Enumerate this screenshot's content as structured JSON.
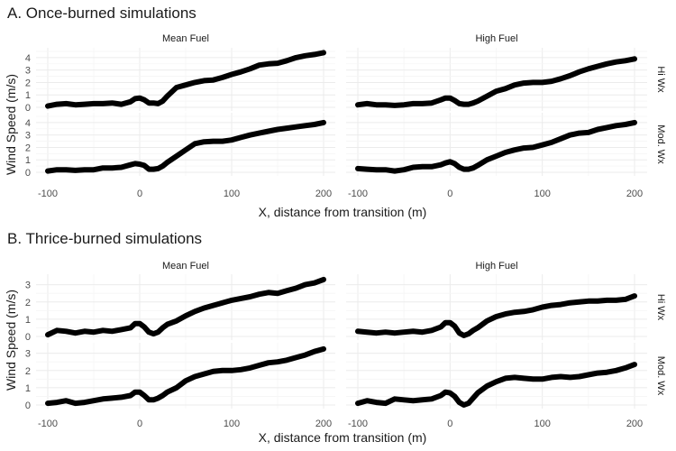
{
  "chart_data": [
    {
      "type": "scatter",
      "title": "A. Once-burned simulations",
      "xlabel": "X, distance from transition (m)",
      "ylabel": "Wind Speed (m/s)",
      "xlim": [
        -100,
        200
      ],
      "ylim": [
        0,
        4.5
      ],
      "xticks": [
        "-100",
        "0",
        "100",
        "200"
      ],
      "yticks": [
        "0",
        "1",
        "2",
        "3",
        "4"
      ],
      "columns": [
        "Mean Fuel",
        "High Fuel"
      ],
      "rows": [
        "Hi Wx",
        "Mod. Wx"
      ],
      "panels": [
        {
          "column": "Mean Fuel",
          "row": "Hi Wx",
          "x": [
            -100,
            -90,
            -80,
            -70,
            -60,
            -50,
            -40,
            -30,
            -20,
            -10,
            -5,
            0,
            5,
            10,
            15,
            20,
            25,
            30,
            40,
            50,
            60,
            70,
            80,
            90,
            100,
            110,
            120,
            130,
            140,
            150,
            160,
            170,
            180,
            190,
            200
          ],
          "y": [
            0.1,
            0.25,
            0.3,
            0.2,
            0.25,
            0.3,
            0.3,
            0.35,
            0.25,
            0.45,
            0.7,
            0.75,
            0.6,
            0.35,
            0.35,
            0.3,
            0.5,
            0.9,
            1.6,
            1.8,
            2.0,
            2.15,
            2.2,
            2.4,
            2.65,
            2.85,
            3.1,
            3.4,
            3.5,
            3.55,
            3.75,
            4.0,
            4.15,
            4.25,
            4.4
          ]
        },
        {
          "column": "High Fuel",
          "row": "Hi Wx",
          "x": [
            -100,
            -90,
            -80,
            -70,
            -60,
            -50,
            -40,
            -30,
            -20,
            -10,
            -5,
            0,
            5,
            10,
            15,
            20,
            25,
            30,
            40,
            50,
            60,
            70,
            80,
            90,
            100,
            110,
            120,
            130,
            140,
            150,
            160,
            170,
            180,
            190,
            200
          ],
          "y": [
            0.2,
            0.3,
            0.2,
            0.2,
            0.15,
            0.2,
            0.3,
            0.3,
            0.35,
            0.6,
            0.75,
            0.75,
            0.55,
            0.3,
            0.25,
            0.25,
            0.35,
            0.5,
            0.9,
            1.3,
            1.5,
            1.8,
            1.95,
            2.0,
            2.0,
            2.1,
            2.3,
            2.55,
            2.85,
            3.1,
            3.3,
            3.5,
            3.65,
            3.75,
            3.9
          ]
        },
        {
          "column": "Mean Fuel",
          "row": "Mod. Wx",
          "x": [
            -100,
            -90,
            -80,
            -70,
            -60,
            -50,
            -40,
            -30,
            -20,
            -10,
            -5,
            0,
            5,
            10,
            15,
            20,
            25,
            30,
            40,
            50,
            60,
            70,
            80,
            90,
            100,
            110,
            120,
            130,
            140,
            150,
            160,
            170,
            180,
            190,
            200
          ],
          "y": [
            0.1,
            0.2,
            0.2,
            0.15,
            0.2,
            0.2,
            0.35,
            0.35,
            0.4,
            0.6,
            0.7,
            0.65,
            0.55,
            0.25,
            0.25,
            0.3,
            0.5,
            0.8,
            1.3,
            1.8,
            2.3,
            2.45,
            2.5,
            2.5,
            2.6,
            2.8,
            3.0,
            3.15,
            3.3,
            3.45,
            3.55,
            3.65,
            3.75,
            3.85,
            4.0
          ]
        },
        {
          "column": "High Fuel",
          "row": "Mod. Wx",
          "x": [
            -100,
            -90,
            -80,
            -70,
            -60,
            -50,
            -40,
            -30,
            -20,
            -10,
            -5,
            0,
            5,
            10,
            15,
            20,
            25,
            30,
            40,
            50,
            60,
            70,
            80,
            90,
            100,
            110,
            120,
            130,
            140,
            150,
            160,
            170,
            180,
            190,
            200
          ],
          "y": [
            0.3,
            0.25,
            0.2,
            0.2,
            0.1,
            0.2,
            0.4,
            0.45,
            0.45,
            0.6,
            0.75,
            0.85,
            0.7,
            0.4,
            0.25,
            0.25,
            0.35,
            0.55,
            1.0,
            1.3,
            1.6,
            1.8,
            1.95,
            2.0,
            2.2,
            2.4,
            2.7,
            3.0,
            3.15,
            3.2,
            3.45,
            3.6,
            3.75,
            3.85,
            4.0
          ]
        }
      ]
    },
    {
      "type": "scatter",
      "title": "B. Thrice-burned simulations",
      "xlabel": "X, distance from transition (m)",
      "ylabel": "Wind Speed (m/s)",
      "xlim": [
        -100,
        200
      ],
      "ylim": [
        0,
        3.4
      ],
      "xticks": [
        "-100",
        "0",
        "100",
        "200"
      ],
      "yticks": [
        "0",
        "1",
        "2",
        "3"
      ],
      "columns": [
        "Mean Fuel",
        "High Fuel"
      ],
      "rows": [
        "Hi Wx",
        "Mod. Wx"
      ],
      "panels": [
        {
          "column": "Mean Fuel",
          "row": "Hi Wx",
          "x": [
            -100,
            -90,
            -80,
            -70,
            -60,
            -50,
            -40,
            -30,
            -20,
            -10,
            -5,
            0,
            5,
            10,
            15,
            20,
            25,
            30,
            40,
            50,
            60,
            70,
            80,
            90,
            100,
            110,
            120,
            130,
            140,
            150,
            160,
            170,
            180,
            190,
            200
          ],
          "y": [
            0.1,
            0.35,
            0.3,
            0.2,
            0.3,
            0.25,
            0.35,
            0.3,
            0.4,
            0.5,
            0.75,
            0.75,
            0.55,
            0.25,
            0.15,
            0.25,
            0.5,
            0.7,
            0.9,
            1.2,
            1.45,
            1.65,
            1.8,
            1.95,
            2.1,
            2.2,
            2.3,
            2.45,
            2.55,
            2.5,
            2.65,
            2.8,
            3.0,
            3.1,
            3.3
          ]
        },
        {
          "column": "High Fuel",
          "row": "Hi Wx",
          "x": [
            -100,
            -90,
            -80,
            -70,
            -60,
            -50,
            -40,
            -30,
            -20,
            -10,
            -5,
            0,
            5,
            10,
            15,
            20,
            25,
            30,
            40,
            50,
            60,
            70,
            80,
            90,
            100,
            110,
            120,
            130,
            140,
            150,
            160,
            170,
            180,
            190,
            200
          ],
          "y": [
            0.3,
            0.25,
            0.2,
            0.25,
            0.2,
            0.25,
            0.3,
            0.25,
            0.35,
            0.55,
            0.8,
            0.8,
            0.6,
            0.2,
            0.05,
            0.15,
            0.35,
            0.5,
            0.9,
            1.15,
            1.3,
            1.4,
            1.45,
            1.55,
            1.7,
            1.8,
            1.85,
            1.95,
            2.0,
            2.05,
            2.05,
            2.1,
            2.1,
            2.15,
            2.35
          ]
        },
        {
          "column": "Mean Fuel",
          "row": "Mod. Wx",
          "x": [
            -100,
            -90,
            -80,
            -70,
            -60,
            -50,
            -40,
            -30,
            -20,
            -10,
            -5,
            0,
            5,
            10,
            15,
            20,
            25,
            30,
            40,
            50,
            60,
            70,
            80,
            90,
            100,
            110,
            120,
            130,
            140,
            150,
            160,
            170,
            180,
            190,
            200
          ],
          "y": [
            0.1,
            0.15,
            0.25,
            0.1,
            0.15,
            0.25,
            0.35,
            0.4,
            0.45,
            0.55,
            0.75,
            0.75,
            0.55,
            0.3,
            0.3,
            0.4,
            0.55,
            0.75,
            1.0,
            1.4,
            1.65,
            1.8,
            1.95,
            2.0,
            2.0,
            2.05,
            2.15,
            2.3,
            2.45,
            2.5,
            2.6,
            2.75,
            2.9,
            3.1,
            3.25
          ]
        },
        {
          "column": "High Fuel",
          "row": "Mod. Wx",
          "x": [
            -100,
            -90,
            -80,
            -70,
            -60,
            -50,
            -40,
            -30,
            -20,
            -10,
            -5,
            0,
            5,
            10,
            15,
            20,
            25,
            30,
            40,
            50,
            60,
            70,
            80,
            90,
            100,
            110,
            120,
            130,
            140,
            150,
            160,
            170,
            180,
            190,
            200
          ],
          "y": [
            0.1,
            0.25,
            0.15,
            0.1,
            0.35,
            0.3,
            0.25,
            0.3,
            0.35,
            0.55,
            0.75,
            0.7,
            0.5,
            0.15,
            0.0,
            0.1,
            0.4,
            0.7,
            1.1,
            1.35,
            1.55,
            1.6,
            1.55,
            1.5,
            1.5,
            1.6,
            1.65,
            1.6,
            1.65,
            1.75,
            1.85,
            1.9,
            2.0,
            2.15,
            2.35
          ]
        }
      ]
    }
  ]
}
